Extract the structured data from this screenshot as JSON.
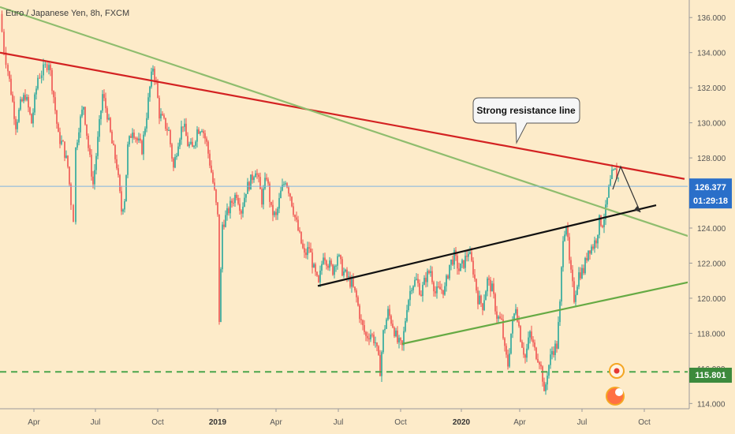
{
  "chart_data": {
    "type": "line",
    "title": "Euro / Japanese Yen, 8h, FXCM",
    "x_ticks": [
      "Apr",
      "Jul",
      "Oct",
      "2019",
      "Apr",
      "Jul",
      "Oct",
      "2020",
      "Apr",
      "Jul",
      "Oct"
    ],
    "y_ticks": [
      "136.000",
      "134.000",
      "132.000",
      "130.000",
      "128.000",
      "126.000",
      "124.000",
      "122.000",
      "120.000",
      "118.000",
      "116.000",
      "114.000"
    ],
    "ylim": [
      113.7,
      137.0
    ],
    "grid": false,
    "price_path": [
      [
        0,
        136.2
      ],
      [
        5,
        134.2
      ],
      [
        10,
        133.0
      ],
      [
        14,
        131.8
      ],
      [
        20,
        129.9
      ],
      [
        26,
        131.0
      ],
      [
        32,
        131.6
      ],
      [
        40,
        130.0
      ],
      [
        48,
        132.6
      ],
      [
        55,
        133.0
      ],
      [
        62,
        133.5
      ],
      [
        68,
        131.5
      ],
      [
        74,
        129.2
      ],
      [
        80,
        128.7
      ],
      [
        86,
        127.5
      ],
      [
        90,
        125.5
      ],
      [
        93,
        124.6
      ],
      [
        96,
        128.5
      ],
      [
        100,
        129.8
      ],
      [
        106,
        131.0
      ],
      [
        112,
        128.6
      ],
      [
        118,
        126.5
      ],
      [
        124,
        129.0
      ],
      [
        130,
        131.6
      ],
      [
        136,
        130.5
      ],
      [
        142,
        128.8
      ],
      [
        148,
        127.6
      ],
      [
        154,
        125.0
      ],
      [
        158,
        125.7
      ],
      [
        162,
        128.6
      ],
      [
        168,
        129.7
      ],
      [
        174,
        129.0
      ],
      [
        180,
        128.5
      ],
      [
        186,
        130.5
      ],
      [
        190,
        132.0
      ],
      [
        194,
        133.2
      ],
      [
        198,
        132.2
      ],
      [
        202,
        130.5
      ],
      [
        208,
        130.0
      ],
      [
        214,
        129.5
      ],
      [
        220,
        127.4
      ],
      [
        226,
        129.0
      ],
      [
        232,
        130.0
      ],
      [
        238,
        128.8
      ],
      [
        244,
        128.5
      ],
      [
        250,
        129.6
      ],
      [
        256,
        129.8
      ],
      [
        262,
        128.8
      ],
      [
        268,
        127.2
      ],
      [
        272,
        126.0
      ],
      [
        276,
        124.6
      ],
      [
        278,
        118.8
      ],
      [
        282,
        124.2
      ],
      [
        288,
        124.8
      ],
      [
        294,
        125.5
      ],
      [
        300,
        126.0
      ],
      [
        306,
        125.0
      ],
      [
        312,
        126.2
      ],
      [
        318,
        126.7
      ],
      [
        324,
        127.4
      ],
      [
        328,
        126.6
      ],
      [
        332,
        125.6
      ],
      [
        338,
        127.0
      ],
      [
        344,
        125.0
      ],
      [
        350,
        124.6
      ],
      [
        356,
        126.0
      ],
      [
        362,
        126.8
      ],
      [
        368,
        125.9
      ],
      [
        374,
        124.6
      ],
      [
        380,
        123.5
      ],
      [
        386,
        122.4
      ],
      [
        392,
        122.9
      ],
      [
        398,
        121.6
      ],
      [
        404,
        120.7
      ],
      [
        410,
        122.6
      ],
      [
        416,
        122.0
      ],
      [
        422,
        121.6
      ],
      [
        428,
        122.5
      ],
      [
        434,
        121.6
      ],
      [
        440,
        121.2
      ],
      [
        446,
        120.8
      ],
      [
        452,
        120.0
      ],
      [
        458,
        118.6
      ],
      [
        464,
        117.8
      ],
      [
        470,
        118.0
      ],
      [
        476,
        117.5
      ],
      [
        482,
        115.9
      ],
      [
        486,
        118.0
      ],
      [
        492,
        119.2
      ],
      [
        498,
        118.5
      ],
      [
        504,
        117.5
      ],
      [
        510,
        117.2
      ],
      [
        516,
        119.6
      ],
      [
        522,
        120.8
      ],
      [
        528,
        121.0
      ],
      [
        534,
        120.3
      ],
      [
        540,
        121.2
      ],
      [
        546,
        121.6
      ],
      [
        552,
        120.3
      ],
      [
        558,
        120.5
      ],
      [
        564,
        120.5
      ],
      [
        570,
        121.9
      ],
      [
        576,
        122.4
      ],
      [
        582,
        121.6
      ],
      [
        588,
        122.0
      ],
      [
        594,
        122.7
      ],
      [
        600,
        121.6
      ],
      [
        606,
        120.0
      ],
      [
        612,
        119.6
      ],
      [
        618,
        121.0
      ],
      [
        624,
        120.5
      ],
      [
        630,
        119.0
      ],
      [
        636,
        118.6
      ],
      [
        640,
        117.0
      ],
      [
        644,
        116.2
      ],
      [
        648,
        118.0
      ],
      [
        654,
        119.6
      ],
      [
        660,
        117.8
      ],
      [
        666,
        116.6
      ],
      [
        672,
        118.0
      ],
      [
        678,
        117.0
      ],
      [
        684,
        116.5
      ],
      [
        688,
        115.5
      ],
      [
        690,
        114.4
      ],
      [
        694,
        115.8
      ],
      [
        700,
        117.0
      ],
      [
        706,
        117.3
      ],
      [
        710,
        119.6
      ],
      [
        714,
        123.6
      ],
      [
        718,
        124.3
      ],
      [
        722,
        122.0
      ],
      [
        728,
        120.0
      ],
      [
        734,
        121.4
      ],
      [
        740,
        121.6
      ],
      [
        746,
        122.8
      ],
      [
        752,
        123.0
      ],
      [
        756,
        123.4
      ],
      [
        760,
        124.4
      ],
      [
        764,
        124.3
      ],
      [
        768,
        125.0
      ],
      [
        772,
        126.2
      ],
      [
        776,
        127.0
      ],
      [
        780,
        127.2
      ],
      [
        784,
        126.8
      ]
    ],
    "last_price": "126.377",
    "countdown": "01:29:18",
    "horizontal_level": {
      "value": 115.801,
      "label": "115.801"
    },
    "trendlines": [
      {
        "name": "red-resistance",
        "color": "#d32222",
        "from": [
          0,
          134.0
        ],
        "to": [
          868,
          126.8
        ]
      },
      {
        "name": "green-descending",
        "color": "#8fbd6e",
        "from": [
          0,
          136.6
        ],
        "to": [
          882,
          123.4
        ]
      },
      {
        "name": "black-rising",
        "color": "#111111",
        "from": [
          403,
          120.7
        ],
        "to": [
          832,
          125.3
        ]
      },
      {
        "name": "green-rising",
        "color": "#66aa44",
        "from": [
          510,
          117.4
        ],
        "to": [
          882,
          121.0
        ]
      }
    ],
    "projection_path": [
      [
        777,
        126.2
      ],
      [
        787,
        127.5
      ],
      [
        812,
        124.9
      ]
    ],
    "annotation": "Strong resistance line",
    "colors": {
      "background": "#fdebc9",
      "candles": [
        "#26a69a",
        "#ef5350"
      ],
      "last_price_tag": "#2a6fc9",
      "level_tag": "#3c8a3c",
      "dashed_level": "#4ca64c"
    }
  }
}
